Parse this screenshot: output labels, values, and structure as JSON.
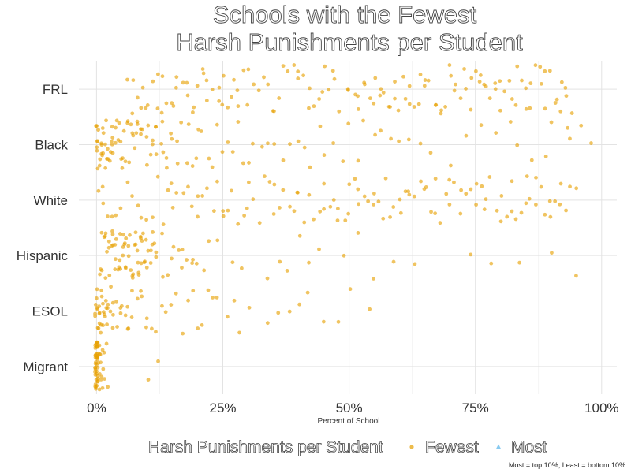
{
  "chart_data": {
    "type": "scatter",
    "title_lines": [
      "Schools with the Fewest",
      "Harsh Punishments per Student"
    ],
    "xlabel": "Percent of School",
    "ylabel": "",
    "xlim": [
      -0.035,
      1.03
    ],
    "x_ticks": [
      0,
      0.25,
      0.5,
      0.75,
      1.0
    ],
    "x_tick_labels": [
      "0%",
      "25%",
      "50%",
      "75%",
      "100%"
    ],
    "categories": [
      "FRL",
      "Black",
      "White",
      "Hispanic",
      "ESOL",
      "Migrant"
    ],
    "grid": true,
    "legend": {
      "title": "Harsh Punishments per Student",
      "placement": "bottom",
      "entries": [
        {
          "label": "Fewest",
          "color": "#E69F00",
          "shape": "circle"
        },
        {
          "label": "Most",
          "color": "#56B4E9",
          "shape": "triangle"
        }
      ]
    },
    "caption": "Most = top 10%; Least = bottom 10%",
    "series": [
      {
        "name": "Fewest",
        "color": "#E69F00",
        "points": {
          "FRL": [
            0.06,
            0.07,
            0.08,
            0.09,
            0.1,
            0.11,
            0.12,
            0.13,
            0.14,
            0.15,
            0.16,
            0.17,
            0.18,
            0.19,
            0.2,
            0.21,
            0.22,
            0.23,
            0.24,
            0.25,
            0.26,
            0.27,
            0.28,
            0.29,
            0.3,
            0.31,
            0.33,
            0.34,
            0.35,
            0.37,
            0.38,
            0.39,
            0.4,
            0.41,
            0.42,
            0.43,
            0.44,
            0.45,
            0.46,
            0.47,
            0.48,
            0.5,
            0.51,
            0.52,
            0.53,
            0.54,
            0.55,
            0.56,
            0.57,
            0.58,
            0.59,
            0.6,
            0.61,
            0.62,
            0.63,
            0.64,
            0.65,
            0.66,
            0.67,
            0.68,
            0.69,
            0.7,
            0.71,
            0.72,
            0.73,
            0.74,
            0.75,
            0.76,
            0.77,
            0.78,
            0.79,
            0.8,
            0.81,
            0.82,
            0.83,
            0.84,
            0.85,
            0.86,
            0.87,
            0.88,
            0.89,
            0.9,
            0.91,
            0.92,
            0.93,
            0.07,
            0.1,
            0.13,
            0.16,
            0.19,
            0.22,
            0.25,
            0.28,
            0.32,
            0.36,
            0.4,
            0.45,
            0.5,
            0.53,
            0.56,
            0.59,
            0.62,
            0.65,
            0.68,
            0.71,
            0.74,
            0.77,
            0.8,
            0.83,
            0.86,
            0.89,
            0.92,
            0.94,
            0.09,
            0.12,
            0.15,
            0.18,
            0.21,
            0.24,
            0.27,
            0.3,
            0.35,
            0.42,
            0.47,
            0.52,
            0.55,
            0.58,
            0.61,
            0.64,
            0.67,
            0.7,
            0.73,
            0.76,
            0.79,
            0.82,
            0.85,
            0.88,
            0.91,
            0.93
          ],
          "Black": [
            0.0,
            0.0,
            0.0,
            0.0,
            0.0,
            0.0,
            0.005,
            0.005,
            0.005,
            0.005,
            0.01,
            0.01,
            0.01,
            0.01,
            0.01,
            0.015,
            0.015,
            0.015,
            0.02,
            0.02,
            0.02,
            0.02,
            0.025,
            0.025,
            0.03,
            0.03,
            0.03,
            0.035,
            0.035,
            0.04,
            0.04,
            0.045,
            0.045,
            0.05,
            0.05,
            0.055,
            0.06,
            0.06,
            0.065,
            0.07,
            0.07,
            0.075,
            0.08,
            0.08,
            0.09,
            0.09,
            0.1,
            0.1,
            0.11,
            0.11,
            0.12,
            0.12,
            0.13,
            0.13,
            0.14,
            0.15,
            0.15,
            0.16,
            0.17,
            0.18,
            0.19,
            0.2,
            0.21,
            0.22,
            0.23,
            0.24,
            0.25,
            0.26,
            0.27,
            0.28,
            0.29,
            0.3,
            0.31,
            0.33,
            0.34,
            0.35,
            0.37,
            0.38,
            0.4,
            0.41,
            0.42,
            0.44,
            0.45,
            0.47,
            0.49,
            0.5,
            0.52,
            0.53,
            0.55,
            0.56,
            0.58,
            0.6,
            0.62,
            0.64,
            0.66,
            0.7,
            0.73,
            0.76,
            0.79,
            0.82,
            0.83,
            0.86,
            0.89,
            0.9,
            0.93,
            0.94,
            0.96,
            0.98,
            0.02,
            0.04,
            0.06,
            0.08,
            0.1,
            0.12,
            0.14,
            0.16,
            0.18,
            0.2,
            0.03,
            0.05,
            0.07,
            0.09,
            0.11,
            0.13
          ],
          "White": [
            0.005,
            0.01,
            0.015,
            0.02,
            0.03,
            0.04,
            0.05,
            0.06,
            0.07,
            0.08,
            0.09,
            0.1,
            0.11,
            0.12,
            0.13,
            0.14,
            0.15,
            0.16,
            0.17,
            0.18,
            0.19,
            0.2,
            0.21,
            0.22,
            0.23,
            0.24,
            0.25,
            0.26,
            0.27,
            0.28,
            0.29,
            0.3,
            0.31,
            0.32,
            0.33,
            0.34,
            0.35,
            0.36,
            0.37,
            0.38,
            0.39,
            0.4,
            0.41,
            0.42,
            0.43,
            0.44,
            0.45,
            0.46,
            0.47,
            0.48,
            0.49,
            0.5,
            0.51,
            0.52,
            0.53,
            0.54,
            0.55,
            0.56,
            0.57,
            0.58,
            0.59,
            0.6,
            0.61,
            0.62,
            0.63,
            0.64,
            0.65,
            0.66,
            0.67,
            0.68,
            0.69,
            0.7,
            0.71,
            0.72,
            0.73,
            0.74,
            0.75,
            0.76,
            0.77,
            0.78,
            0.79,
            0.8,
            0.81,
            0.82,
            0.83,
            0.84,
            0.85,
            0.86,
            0.87,
            0.88,
            0.89,
            0.9,
            0.91,
            0.92,
            0.93,
            0.94,
            0.95,
            0.45,
            0.5,
            0.55,
            0.6,
            0.65,
            0.7,
            0.75,
            0.8,
            0.85,
            0.9,
            0.48,
            0.52,
            0.57,
            0.62,
            0.67,
            0.72,
            0.77,
            0.82,
            0.87,
            0.92,
            0.2,
            0.3,
            0.4,
            0.35,
            0.25,
            0.15
          ],
          "Hispanic": [
            0.005,
            0.01,
            0.015,
            0.02,
            0.025,
            0.03,
            0.035,
            0.04,
            0.045,
            0.05,
            0.055,
            0.06,
            0.065,
            0.07,
            0.075,
            0.08,
            0.085,
            0.09,
            0.095,
            0.1,
            0.105,
            0.11,
            0.12,
            0.13,
            0.14,
            0.15,
            0.16,
            0.17,
            0.18,
            0.19,
            0.2,
            0.22,
            0.02,
            0.03,
            0.04,
            0.05,
            0.06,
            0.07,
            0.08,
            0.09,
            0.1,
            0.11,
            0.01,
            0.02,
            0.03,
            0.04,
            0.05,
            0.06,
            0.07,
            0.08,
            0.09,
            0.1,
            0.12,
            0.025,
            0.035,
            0.045,
            0.055,
            0.065,
            0.075,
            0.085,
            0.095,
            0.105,
            0.115,
            0.005,
            0.015,
            0.025,
            0.035,
            0.045,
            0.055,
            0.065,
            0.075,
            0.085,
            0.095,
            0.13,
            0.15,
            0.17,
            0.19,
            0.21,
            0.24,
            0.27,
            0.29,
            0.34,
            0.36,
            0.38,
            0.4,
            0.42,
            0.44,
            0.49,
            0.52,
            0.55,
            0.59,
            0.63,
            0.74,
            0.78,
            0.84,
            0.9,
            0.95
          ],
          "ESOL": [
            0.0,
            0.0,
            0.0,
            0.0,
            0.0,
            0.0,
            0.0,
            0.0,
            0.005,
            0.005,
            0.005,
            0.005,
            0.005,
            0.01,
            0.01,
            0.01,
            0.01,
            0.01,
            0.015,
            0.015,
            0.015,
            0.02,
            0.02,
            0.02,
            0.025,
            0.025,
            0.03,
            0.03,
            0.035,
            0.04,
            0.045,
            0.05,
            0.055,
            0.06,
            0.065,
            0.07,
            0.08,
            0.09,
            0.1,
            0.11,
            0.12,
            0.13,
            0.14,
            0.15,
            0.16,
            0.17,
            0.18,
            0.19,
            0.2,
            0.21,
            0.22,
            0.23,
            0.24,
            0.26,
            0.27,
            0.28,
            0.3,
            0.34,
            0.36,
            0.38,
            0.4,
            0.42,
            0.45,
            0.48,
            0.5,
            0.54,
            0.06,
            0.07,
            0.09,
            0.1,
            0.03,
            0.04,
            0.05,
            0.01,
            0.02
          ],
          "Migrant": [
            0.0,
            0.0,
            0.0,
            0.0,
            0.0,
            0.0,
            0.0,
            0.0,
            0.0,
            0.0,
            0.0,
            0.0,
            0.0,
            0.0,
            0.0,
            0.0,
            0.0,
            0.0,
            0.0,
            0.0,
            0.0,
            0.0,
            0.0,
            0.0,
            0.0,
            0.0,
            0.0,
            0.0,
            0.0,
            0.0,
            0.0,
            0.0,
            0.0,
            0.0,
            0.0,
            0.0,
            0.0,
            0.0,
            0.0,
            0.0,
            0.005,
            0.005,
            0.005,
            0.005,
            0.005,
            0.01,
            0.01,
            0.01,
            0.01,
            0.015,
            0.015,
            0.02,
            0.02,
            0.005,
            0.01,
            0.015,
            0.1,
            0.12
          ]
        }
      }
    ]
  }
}
